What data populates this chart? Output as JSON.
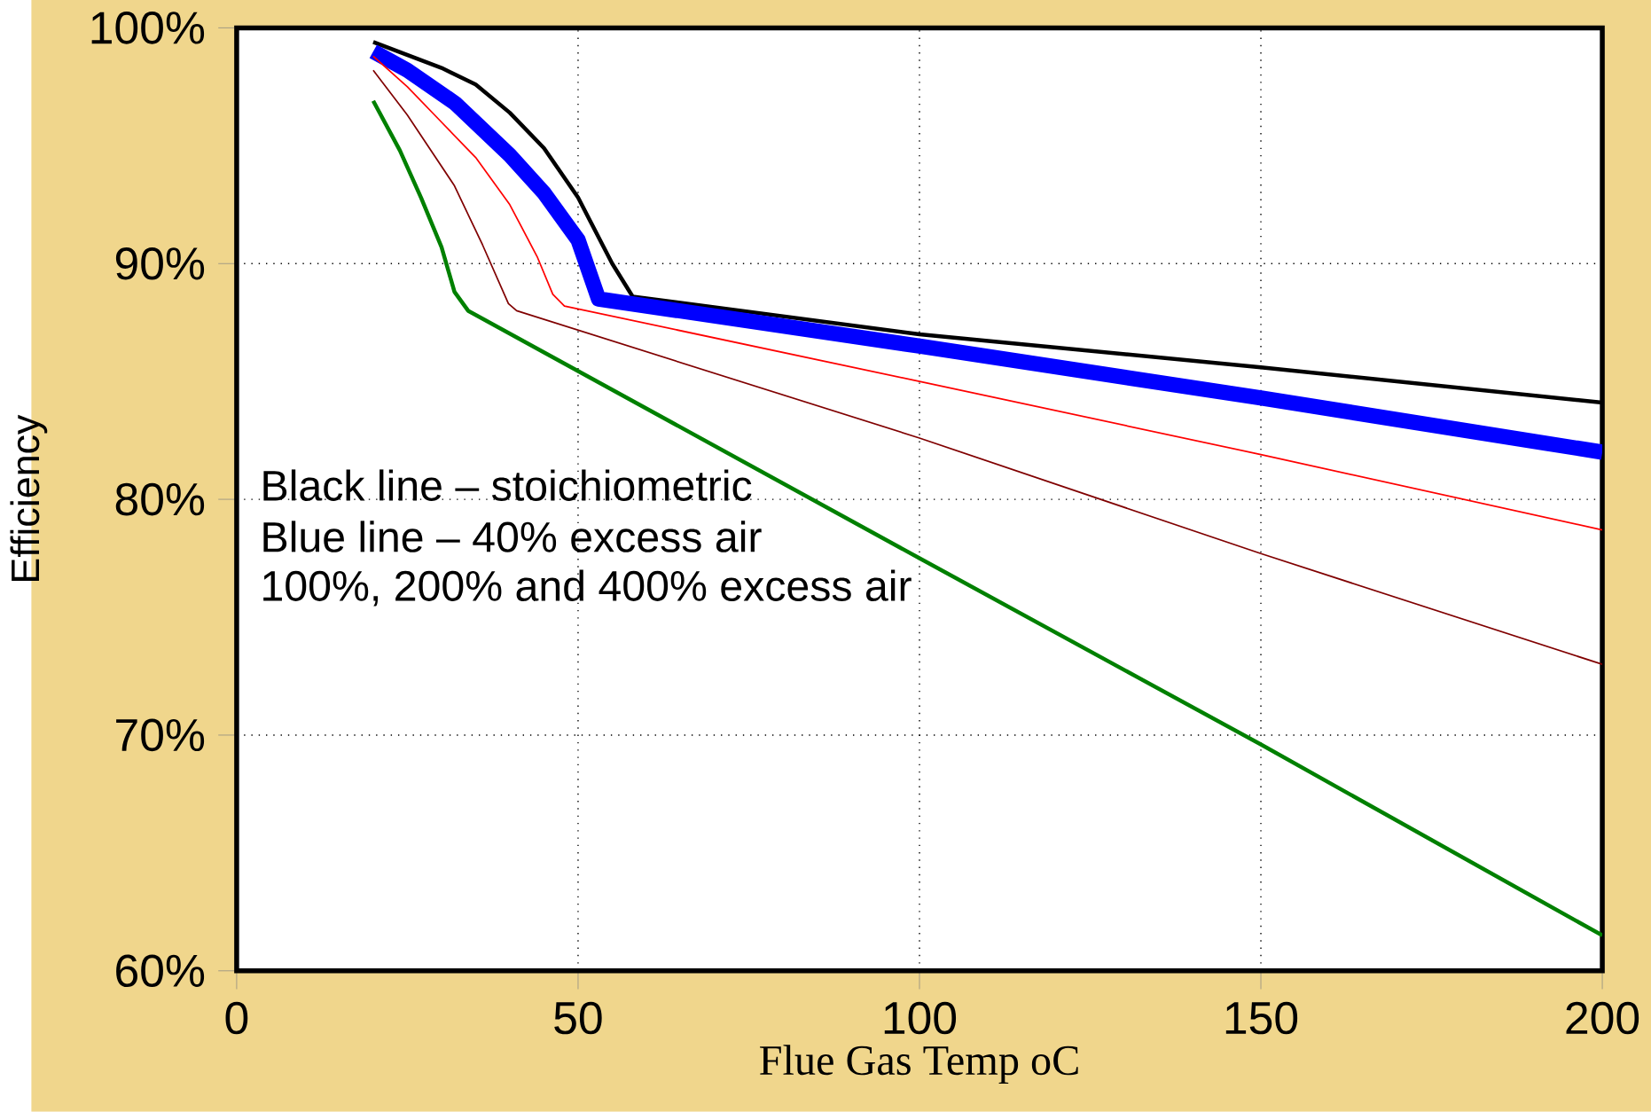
{
  "chart_data": {
    "type": "line",
    "xlabel": "Flue Gas Temp oC",
    "ylabel": "Efficiency",
    "xlim": [
      0,
      200
    ],
    "ylim": [
      60,
      100
    ],
    "xticks": [
      0,
      50,
      100,
      150,
      200
    ],
    "yticks": [
      {
        "value": 60,
        "label": "60%"
      },
      {
        "value": 70,
        "label": "70%"
      },
      {
        "value": 80,
        "label": "80%"
      },
      {
        "value": 90,
        "label": "90%"
      },
      {
        "value": 100,
        "label": "100%"
      }
    ],
    "grid": true,
    "marker": "none",
    "line_style": "solid",
    "annotations": [
      "Black line – stoichiometric",
      "Blue line – 40% excess air",
      "100%, 200% and 400% excess air"
    ],
    "series": [
      {
        "color": "#000000",
        "x": [
          20,
          30,
          35,
          40,
          45,
          50,
          55,
          58,
          100,
          150,
          200
        ],
        "values": [
          99.4,
          98.3,
          97.6,
          96.4,
          94.9,
          92.8,
          90.0,
          88.6,
          87.0,
          85.6,
          84.1
        ]
      },
      {
        "color": "#0000ff",
        "x": [
          20,
          25,
          32,
          40,
          45,
          50,
          53,
          100,
          150,
          200
        ],
        "values": [
          99.0,
          98.2,
          96.8,
          94.6,
          93.0,
          91.0,
          88.5,
          86.5,
          84.3,
          82.0
        ]
      },
      {
        "color": "#ff0000",
        "x": [
          20,
          25,
          30,
          35,
          40,
          44,
          46.3,
          48,
          100,
          150,
          200
        ],
        "values": [
          98.8,
          97.5,
          96.0,
          94.5,
          92.5,
          90.3,
          88.7,
          88.2,
          85.0,
          81.9,
          78.7
        ]
      },
      {
        "color": "#800000",
        "x": [
          20,
          25,
          31.9,
          36,
          39.8,
          41,
          100,
          150,
          200
        ],
        "values": [
          98.2,
          96.3,
          93.3,
          90.8,
          88.3,
          88.0,
          82.6,
          77.7,
          73.0
        ]
      },
      {
        "color": "#008000",
        "x": [
          20,
          23.9,
          27,
          30,
          31.9,
          33.9,
          100,
          150,
          200
        ],
        "values": [
          96.9,
          94.8,
          92.8,
          90.7,
          88.8,
          88.0,
          77.5,
          69.6,
          61.5
        ]
      }
    ]
  }
}
